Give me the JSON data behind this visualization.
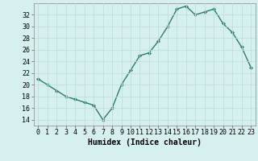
{
  "x": [
    0,
    1,
    2,
    3,
    4,
    5,
    6,
    7,
    8,
    9,
    10,
    11,
    12,
    13,
    14,
    15,
    16,
    17,
    18,
    19,
    20,
    21,
    22,
    23
  ],
  "y": [
    21,
    20,
    19,
    18,
    17.5,
    17,
    16.5,
    14,
    16,
    20,
    22.5,
    25,
    25.5,
    27.5,
    30,
    33,
    33.5,
    32,
    32.5,
    33,
    30.5,
    29,
    26.5,
    23
  ],
  "line_color": "#2e7b6e",
  "marker": "D",
  "marker_size": 2,
  "line_width": 1.0,
  "background_color": "#d6f0f0",
  "grid_color": "#c0dcdc",
  "xlabel": "Humidex (Indice chaleur)",
  "xlabel_fontsize": 7,
  "tick_fontsize": 6,
  "xlim": [
    -0.5,
    23.5
  ],
  "ylim": [
    13,
    34
  ],
  "yticks": [
    14,
    16,
    18,
    20,
    22,
    24,
    26,
    28,
    30,
    32
  ],
  "xticks": [
    0,
    1,
    2,
    3,
    4,
    5,
    6,
    7,
    8,
    9,
    10,
    11,
    12,
    13,
    14,
    15,
    16,
    17,
    18,
    19,
    20,
    21,
    22,
    23
  ]
}
